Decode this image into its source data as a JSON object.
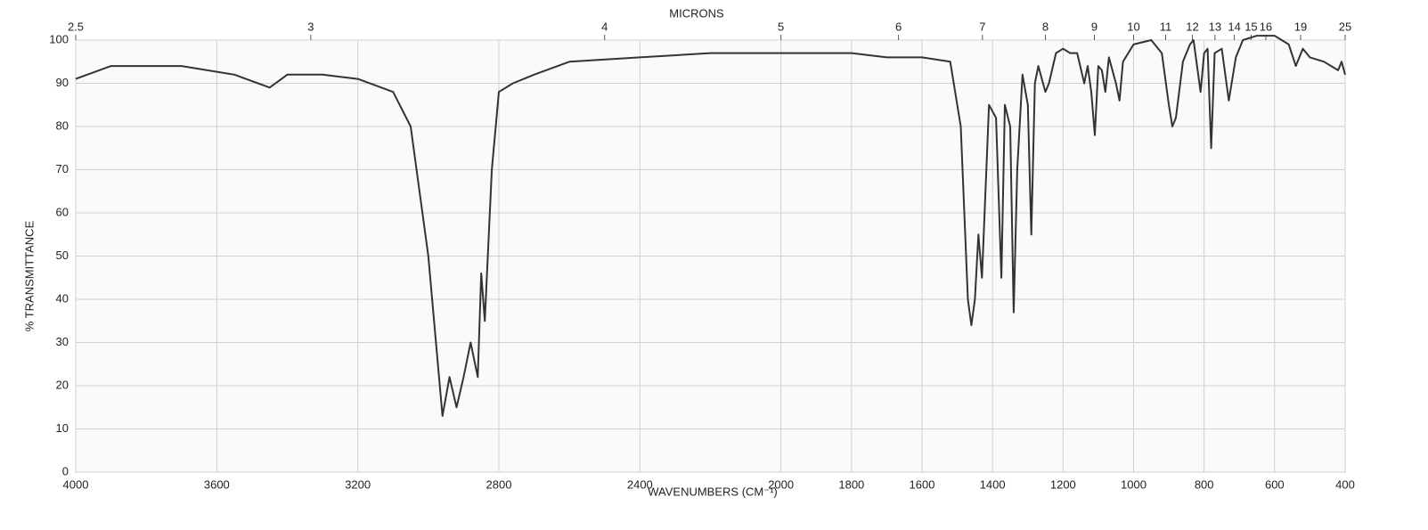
{
  "chart_data": {
    "type": "line",
    "title": "MICRONS",
    "xlabel": "WAVENUMBERS (CM⁻¹)",
    "ylabel": "% TRANSMITTANCE",
    "color": "#333333",
    "grid": true,
    "xlim": [
      4000,
      400
    ],
    "xticks": [
      4000,
      3600,
      3200,
      2800,
      2400,
      2000,
      1800,
      1600,
      1400,
      1200,
      1000,
      800,
      600,
      400
    ],
    "x2ticks": [
      2.5,
      3,
      4,
      5,
      6,
      7,
      8,
      9,
      10,
      11,
      12,
      13,
      14,
      15,
      16,
      19,
      25
    ],
    "ylim": [
      0,
      100
    ],
    "yticks": [
      0,
      10,
      20,
      30,
      40,
      50,
      60,
      70,
      80,
      90,
      100
    ],
    "x": [
      4000,
      3900,
      3700,
      3550,
      3450,
      3400,
      3300,
      3200,
      3100,
      3050,
      3000,
      2960,
      2940,
      2920,
      2900,
      2880,
      2860,
      2850,
      2840,
      2820,
      2800,
      2760,
      2700,
      2600,
      2400,
      2200,
      2000,
      1800,
      1700,
      1600,
      1520,
      1490,
      1470,
      1460,
      1450,
      1440,
      1430,
      1410,
      1390,
      1375,
      1365,
      1350,
      1340,
      1330,
      1315,
      1300,
      1290,
      1280,
      1270,
      1250,
      1240,
      1220,
      1200,
      1180,
      1160,
      1140,
      1130,
      1120,
      1110,
      1100,
      1090,
      1080,
      1070,
      1050,
      1040,
      1030,
      1000,
      950,
      920,
      900,
      890,
      880,
      860,
      840,
      830,
      810,
      800,
      790,
      780,
      770,
      750,
      730,
      710,
      690,
      650,
      600,
      560,
      540,
      520,
      500,
      460,
      420,
      410,
      400
    ],
    "values": [
      91,
      94,
      94,
      92,
      89,
      92,
      92,
      91,
      88,
      80,
      50,
      13,
      22,
      15,
      22,
      30,
      22,
      46,
      35,
      70,
      88,
      90,
      92,
      95,
      96,
      97,
      97,
      97,
      96,
      96,
      95,
      80,
      40,
      34,
      40,
      55,
      45,
      85,
      82,
      45,
      85,
      80,
      37,
      70,
      92,
      85,
      55,
      90,
      94,
      88,
      90,
      97,
      98,
      97,
      97,
      90,
      94,
      88,
      78,
      94,
      93,
      88,
      96,
      90,
      86,
      95,
      99,
      100,
      97,
      85,
      80,
      82,
      95,
      99,
      100,
      88,
      97,
      98,
      75,
      97,
      98,
      86,
      96,
      100,
      101,
      101,
      99,
      94,
      98,
      96,
      95,
      93,
      95,
      92
    ]
  }
}
